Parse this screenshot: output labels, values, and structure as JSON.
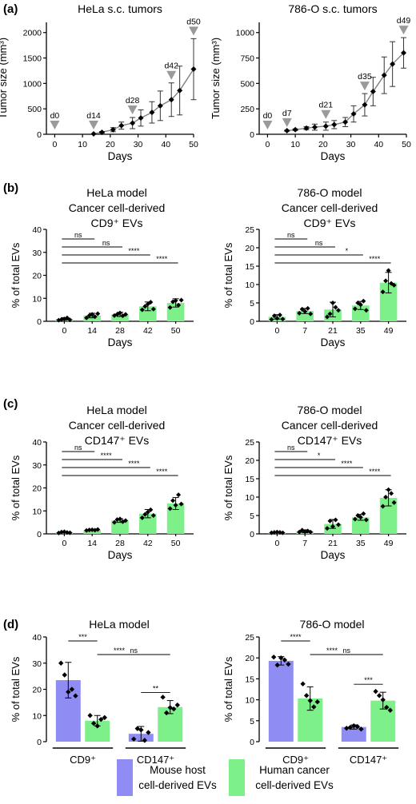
{
  "panel_labels": {
    "a": "(a)",
    "b": "(b)",
    "c": "(c)",
    "d": "(d)"
  },
  "colors": {
    "mouse_host": "#8f8cf4",
    "human_cancer": "#7ef08a",
    "axis": "#000000",
    "marker_arrow": "#9a9a9a",
    "line": "#808080"
  },
  "legend": {
    "mouse_line1": "Mouse host",
    "mouse_line2": "cell-derived EVs",
    "human_line1": "Human cancer",
    "human_line2": "cell-derived EVs"
  },
  "chart_data": [
    {
      "id": "a_hela",
      "type": "line",
      "title": "HeLa s.c. tumors",
      "ylabel": "Tumor size (mm³)",
      "xlabel": "Days",
      "xlim": [
        -3,
        50
      ],
      "ylim": [
        0,
        2200
      ],
      "xticks": [
        0,
        10,
        20,
        30,
        40,
        50
      ],
      "yticks": [
        0,
        500,
        1000,
        1500,
        2000
      ],
      "x": [
        14,
        17,
        21,
        24,
        28,
        31,
        35,
        38,
        42,
        45,
        50
      ],
      "y": [
        8,
        40,
        90,
        170,
        220,
        320,
        430,
        560,
        680,
        860,
        1280
      ],
      "err": [
        0,
        15,
        40,
        70,
        110,
        160,
        210,
        290,
        330,
        480,
        600
      ],
      "markers": [
        {
          "label": "d0",
          "x": 0
        },
        {
          "label": "d14",
          "x": 14
        },
        {
          "label": "d28",
          "x": 28
        },
        {
          "label": "d42",
          "x": 42
        },
        {
          "label": "d50",
          "x": 50
        }
      ]
    },
    {
      "id": "a_786o",
      "type": "line",
      "title": "786-O s.c. tumors",
      "ylabel": "Tumor size (mm³)",
      "xlabel": "Days",
      "xlim": [
        -3,
        50
      ],
      "ylim": [
        0,
        1100
      ],
      "xticks": [
        0,
        10,
        20,
        30,
        40,
        50
      ],
      "yticks": [
        0,
        250,
        500,
        750,
        1000
      ],
      "x": [
        7,
        10,
        14,
        17,
        21,
        24,
        28,
        31,
        35,
        38,
        42,
        45,
        49
      ],
      "y": [
        35,
        45,
        60,
        70,
        80,
        95,
        120,
        200,
        290,
        420,
        580,
        690,
        800
      ],
      "err": [
        5,
        8,
        15,
        30,
        40,
        40,
        45,
        80,
        110,
        140,
        180,
        220,
        150
      ],
      "markers": [
        {
          "label": "d0",
          "x": 0
        },
        {
          "label": "d7",
          "x": 7
        },
        {
          "label": "d21",
          "x": 21
        },
        {
          "label": "d35",
          "x": 35
        },
        {
          "label": "d49",
          "x": 49
        }
      ]
    },
    {
      "id": "b_hela",
      "type": "bar",
      "title_lines": [
        "HeLa model",
        "Cancer cell-derived",
        "CD9⁺ EVs"
      ],
      "ylabel": "% of total EVs",
      "xlabel": "Days",
      "categories": [
        "0",
        "14",
        "28",
        "42",
        "50"
      ],
      "values": [
        1.0,
        2.5,
        3.0,
        6.5,
        8.0
      ],
      "err": [
        0.6,
        1.0,
        0.9,
        1.9,
        1.8
      ],
      "points": [
        [
          0.5,
          0.8,
          1.0,
          1.5,
          0.6
        ],
        [
          1.5,
          2.5,
          3.0,
          2.0,
          3.3
        ],
        [
          2.5,
          3.0,
          3.6,
          2.4,
          3.0
        ],
        [
          5.0,
          6.5,
          7.5,
          8.3,
          5.3
        ],
        [
          6.0,
          8.5,
          9.0,
          7.0,
          9.2
        ]
      ],
      "ylim": [
        0,
        40
      ],
      "yticks": [
        0,
        10,
        20,
        30,
        40
      ],
      "bar_color": "#7ef08a",
      "sig": [
        {
          "from": 0,
          "to": 1,
          "label": "ns"
        },
        {
          "from": 0,
          "to": 2,
          "label": "ns"
        },
        {
          "from": 0,
          "to": 3,
          "label": "****"
        },
        {
          "from": 0,
          "to": 4,
          "label": "****"
        }
      ]
    },
    {
      "id": "b_786o",
      "type": "bar",
      "title_lines": [
        "786-O model",
        "Cancer cell-derived",
        "CD9⁺ EVs"
      ],
      "ylabel": "% of total EVs",
      "xlabel": "Days",
      "categories": [
        "0",
        "7",
        "21",
        "35",
        "49"
      ],
      "values": [
        1.2,
        2.8,
        3.2,
        4.3,
        10.5
      ],
      "err": [
        0.6,
        0.7,
        2.0,
        1.1,
        2.8
      ],
      "points": [
        [
          0.5,
          1.5,
          0.8,
          1.7,
          0.6
        ],
        [
          2.2,
          3.3,
          2.7,
          3.5,
          2.0
        ],
        [
          1.2,
          2.0,
          5.0,
          3.8,
          3.0
        ],
        [
          3.4,
          5.0,
          4.5,
          5.5,
          3.0
        ],
        [
          8.0,
          11.0,
          13.8,
          10.3,
          9.8
        ]
      ],
      "ylim": [
        0,
        25
      ],
      "yticks": [
        0,
        5,
        10,
        15,
        20,
        25
      ],
      "bar_color": "#7ef08a",
      "sig": [
        {
          "from": 0,
          "to": 1,
          "label": "ns"
        },
        {
          "from": 0,
          "to": 2,
          "label": "ns"
        },
        {
          "from": 0,
          "to": 3,
          "label": "*"
        },
        {
          "from": 0,
          "to": 4,
          "label": "****"
        }
      ]
    },
    {
      "id": "c_hela",
      "type": "bar",
      "title_lines": [
        "HeLa model",
        "Cancer cell-derived",
        "CD147⁺ EVs"
      ],
      "ylabel": "% of total EVs",
      "xlabel": "Days",
      "categories": [
        "0",
        "14",
        "28",
        "42",
        "50"
      ],
      "values": [
        0.7,
        1.7,
        5.8,
        8.8,
        13.2
      ],
      "err": [
        0.3,
        0.2,
        0.8,
        1.8,
        2.6
      ],
      "points": [
        [
          0.4,
          0.8,
          0.9,
          0.6,
          0.5
        ],
        [
          1.5,
          1.7,
          1.8,
          1.6,
          1.9
        ],
        [
          5.0,
          6.2,
          6.5,
          5.3,
          5.8
        ],
        [
          7.0,
          8.5,
          9.5,
          10.5,
          8.0
        ],
        [
          11.0,
          14.5,
          12.5,
          17.0,
          13.0
        ]
      ],
      "ylim": [
        0,
        40
      ],
      "yticks": [
        0,
        10,
        20,
        30,
        40
      ],
      "bar_color": "#7ef08a",
      "sig": [
        {
          "from": 0,
          "to": 1,
          "label": "ns"
        },
        {
          "from": 0,
          "to": 2,
          "label": "****"
        },
        {
          "from": 0,
          "to": 3,
          "label": "****"
        },
        {
          "from": 0,
          "to": 4,
          "label": "****"
        }
      ]
    },
    {
      "id": "c_786o",
      "type": "bar",
      "title_lines": [
        "786-O model",
        "Cancer cell-derived",
        "CD147⁺ EVs"
      ],
      "ylabel": "% of total EVs",
      "xlabel": "Days",
      "categories": [
        "0",
        "7",
        "21",
        "35",
        "49"
      ],
      "values": [
        0.4,
        0.7,
        2.7,
        4.5,
        9.8
      ],
      "err": [
        0.1,
        0.4,
        1.2,
        0.8,
        2.2
      ],
      "points": [
        [
          0.3,
          0.4,
          0.5,
          0.4,
          0.3
        ],
        [
          0.5,
          1.0,
          0.6,
          0.8,
          0.5
        ],
        [
          1.5,
          3.5,
          2.0,
          3.8,
          2.5
        ],
        [
          4.0,
          5.0,
          4.5,
          5.5,
          3.8
        ],
        [
          7.5,
          10.0,
          12.0,
          11.0,
          8.5
        ]
      ],
      "ylim": [
        0,
        25
      ],
      "yticks": [
        0,
        5,
        10,
        15,
        20,
        25
      ],
      "bar_color": "#7ef08a",
      "sig": [
        {
          "from": 0,
          "to": 1,
          "label": "ns"
        },
        {
          "from": 0,
          "to": 2,
          "label": "*"
        },
        {
          "from": 0,
          "to": 3,
          "label": "****"
        },
        {
          "from": 0,
          "to": 4,
          "label": "****"
        }
      ]
    },
    {
      "id": "d_hela",
      "type": "bar",
      "title": "HeLa model",
      "ylabel": "% of total EVs",
      "groups": [
        "CD9⁺",
        "CD147⁺"
      ],
      "series": [
        {
          "name": "Mouse host cell-derived EVs",
          "color": "#8f8cf4"
        },
        {
          "name": "Human cancer cell-derived EVs",
          "color": "#7ef08a"
        }
      ],
      "values": [
        [
          23.5,
          8.0
        ],
        [
          3.0,
          13.2
        ]
      ],
      "err": [
        [
          6.8,
          2.0
        ],
        [
          2.8,
          2.5
        ]
      ],
      "points": [
        [
          [
            30,
            25.5,
            19,
            20,
            17.5
          ],
          [
            10,
            7,
            6,
            8.5,
            9.2
          ]
        ],
        [
          [
            1,
            5,
            4.5,
            0.5,
            3.5
          ],
          [
            17,
            11,
            13,
            12.5,
            14
          ]
        ]
      ],
      "ylim": [
        0,
        40
      ],
      "yticks": [
        0,
        10,
        20,
        30,
        40
      ],
      "sig": [
        {
          "a": [
            0,
            0
          ],
          "b": [
            0,
            1
          ],
          "label": "***"
        },
        {
          "a": [
            0,
            1
          ],
          "b": [
            1,
            0
          ],
          "label": "****"
        },
        {
          "a": [
            0,
            1
          ],
          "b": [
            1,
            1
          ],
          "label": "ns"
        },
        {
          "a": [
            1,
            0
          ],
          "b": [
            1,
            1
          ],
          "label": "**"
        }
      ]
    },
    {
      "id": "d_786o",
      "type": "bar",
      "title": "786-O model",
      "ylabel": "% of total EVs",
      "groups": [
        "CD9⁺",
        "CD147⁺"
      ],
      "series": [
        {
          "name": "Mouse host cell-derived EVs",
          "color": "#8f8cf4"
        },
        {
          "name": "Human cancer cell-derived EVs",
          "color": "#7ef08a"
        }
      ],
      "values": [
        [
          19.3,
          10.3
        ],
        [
          3.5,
          9.8
        ]
      ],
      "err": [
        [
          1.0,
          2.8
        ],
        [
          0.5,
          2.0
        ]
      ],
      "points": [
        [
          [
            20.2,
            18.3,
            20.0,
            19.5,
            18.5
          ],
          [
            13.8,
            11.0,
            9.8,
            8.3,
            9.5
          ]
        ],
        [
          [
            3.2,
            3.4,
            3.8,
            3.6,
            3.0
          ],
          [
            12.0,
            11.0,
            10.0,
            8.2,
            7.5
          ]
        ]
      ],
      "ylim": [
        0,
        25
      ],
      "yticks": [
        0,
        5,
        10,
        15,
        20,
        25
      ],
      "sig": [
        {
          "a": [
            0,
            0
          ],
          "b": [
            0,
            1
          ],
          "label": "****"
        },
        {
          "a": [
            0,
            1
          ],
          "b": [
            1,
            0
          ],
          "label": "****"
        },
        {
          "a": [
            0,
            1
          ],
          "b": [
            1,
            1
          ],
          "label": "ns"
        },
        {
          "a": [
            1,
            0
          ],
          "b": [
            1,
            1
          ],
          "label": "***"
        }
      ]
    }
  ]
}
